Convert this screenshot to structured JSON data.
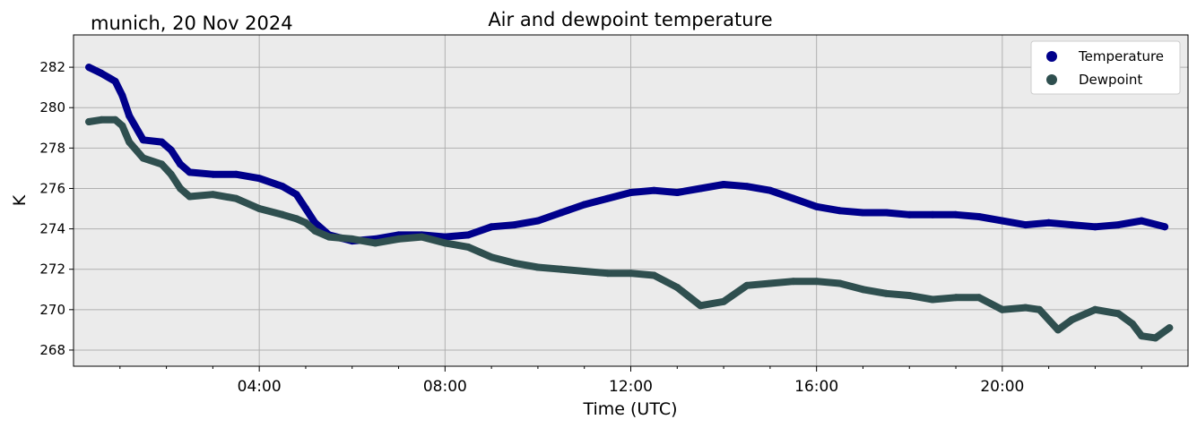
{
  "chart_data": {
    "type": "line",
    "title": "Air and dewpoint temperature",
    "location_label": "munich, 20 Nov 2024",
    "xlabel": "Time (UTC)",
    "ylabel": "K",
    "xlim": [
      0,
      24
    ],
    "ylim": [
      267.2,
      283.6
    ],
    "x_ticks": [
      {
        "value": 4,
        "label": "04:00"
      },
      {
        "value": 8,
        "label": "08:00"
      },
      {
        "value": 12,
        "label": "12:00"
      },
      {
        "value": 16,
        "label": "16:00"
      },
      {
        "value": 20,
        "label": "20:00"
      }
    ],
    "y_ticks": [
      268,
      270,
      272,
      274,
      276,
      278,
      280,
      282
    ],
    "grid": true,
    "legend_position": "top-right",
    "plot_background": "#ebebeb",
    "series": [
      {
        "name": "Temperature",
        "color": "#00008b",
        "raw_color": "#8fb0b0",
        "x": [
          0.33,
          0.6,
          0.9,
          1.05,
          1.2,
          1.5,
          1.9,
          2.1,
          2.3,
          2.5,
          3,
          3.5,
          4,
          4.5,
          4.8,
          5,
          5.2,
          5.5,
          6,
          6.5,
          7,
          7.5,
          8,
          8.5,
          9,
          9.5,
          10,
          10.5,
          11,
          11.5,
          12,
          12.5,
          13,
          13.5,
          14,
          14.5,
          15,
          15.5,
          16,
          16.5,
          17,
          17.5,
          18,
          18.5,
          19,
          19.5,
          20,
          20.5,
          21,
          21.5,
          22,
          22.5,
          23,
          23.5
        ],
        "values": [
          282.0,
          281.7,
          281.3,
          280.6,
          279.6,
          278.4,
          278.3,
          277.9,
          277.2,
          276.8,
          276.7,
          276.7,
          276.5,
          276.1,
          275.7,
          275.0,
          274.3,
          273.7,
          273.4,
          273.5,
          273.7,
          273.7,
          273.6,
          273.7,
          274.1,
          274.2,
          274.4,
          274.8,
          275.2,
          275.5,
          275.8,
          275.9,
          275.8,
          276.0,
          276.2,
          276.1,
          275.9,
          275.5,
          275.1,
          274.9,
          274.8,
          274.8,
          274.7,
          274.7,
          274.7,
          274.6,
          274.4,
          274.2,
          274.3,
          274.2,
          274.1,
          274.2,
          274.4,
          274.1
        ]
      },
      {
        "name": "Dewpoint",
        "color": "#2f4f4f",
        "raw_color": "#29a0e8",
        "x": [
          0.33,
          0.6,
          0.9,
          1.05,
          1.2,
          1.5,
          1.9,
          2.1,
          2.3,
          2.5,
          3,
          3.5,
          4,
          4.5,
          4.8,
          5,
          5.2,
          5.5,
          6,
          6.5,
          7,
          7.5,
          8,
          8.5,
          9,
          9.5,
          10,
          10.5,
          11,
          11.5,
          12,
          12.5,
          13,
          13.5,
          14,
          14.5,
          15,
          15.5,
          16,
          16.5,
          17,
          17.5,
          18,
          18.5,
          19,
          19.5,
          20,
          20.5,
          20.8,
          21.2,
          21.5,
          22,
          22.5,
          22.8,
          23,
          23.3,
          23.6
        ],
        "values": [
          279.3,
          279.4,
          279.4,
          279.1,
          278.3,
          277.5,
          277.2,
          276.7,
          276.0,
          275.6,
          275.7,
          275.5,
          275.0,
          274.7,
          274.5,
          274.3,
          273.9,
          273.6,
          273.5,
          273.3,
          273.5,
          273.6,
          273.3,
          273.1,
          272.6,
          272.3,
          272.1,
          272.0,
          271.9,
          271.8,
          271.8,
          271.7,
          271.1,
          270.2,
          270.4,
          271.2,
          271.3,
          271.4,
          271.4,
          271.3,
          271.0,
          270.8,
          270.7,
          270.5,
          270.6,
          270.6,
          270.0,
          270.1,
          270.0,
          269.0,
          269.5,
          270.0,
          269.8,
          269.3,
          268.7,
          268.6,
          269.1
        ]
      }
    ]
  }
}
